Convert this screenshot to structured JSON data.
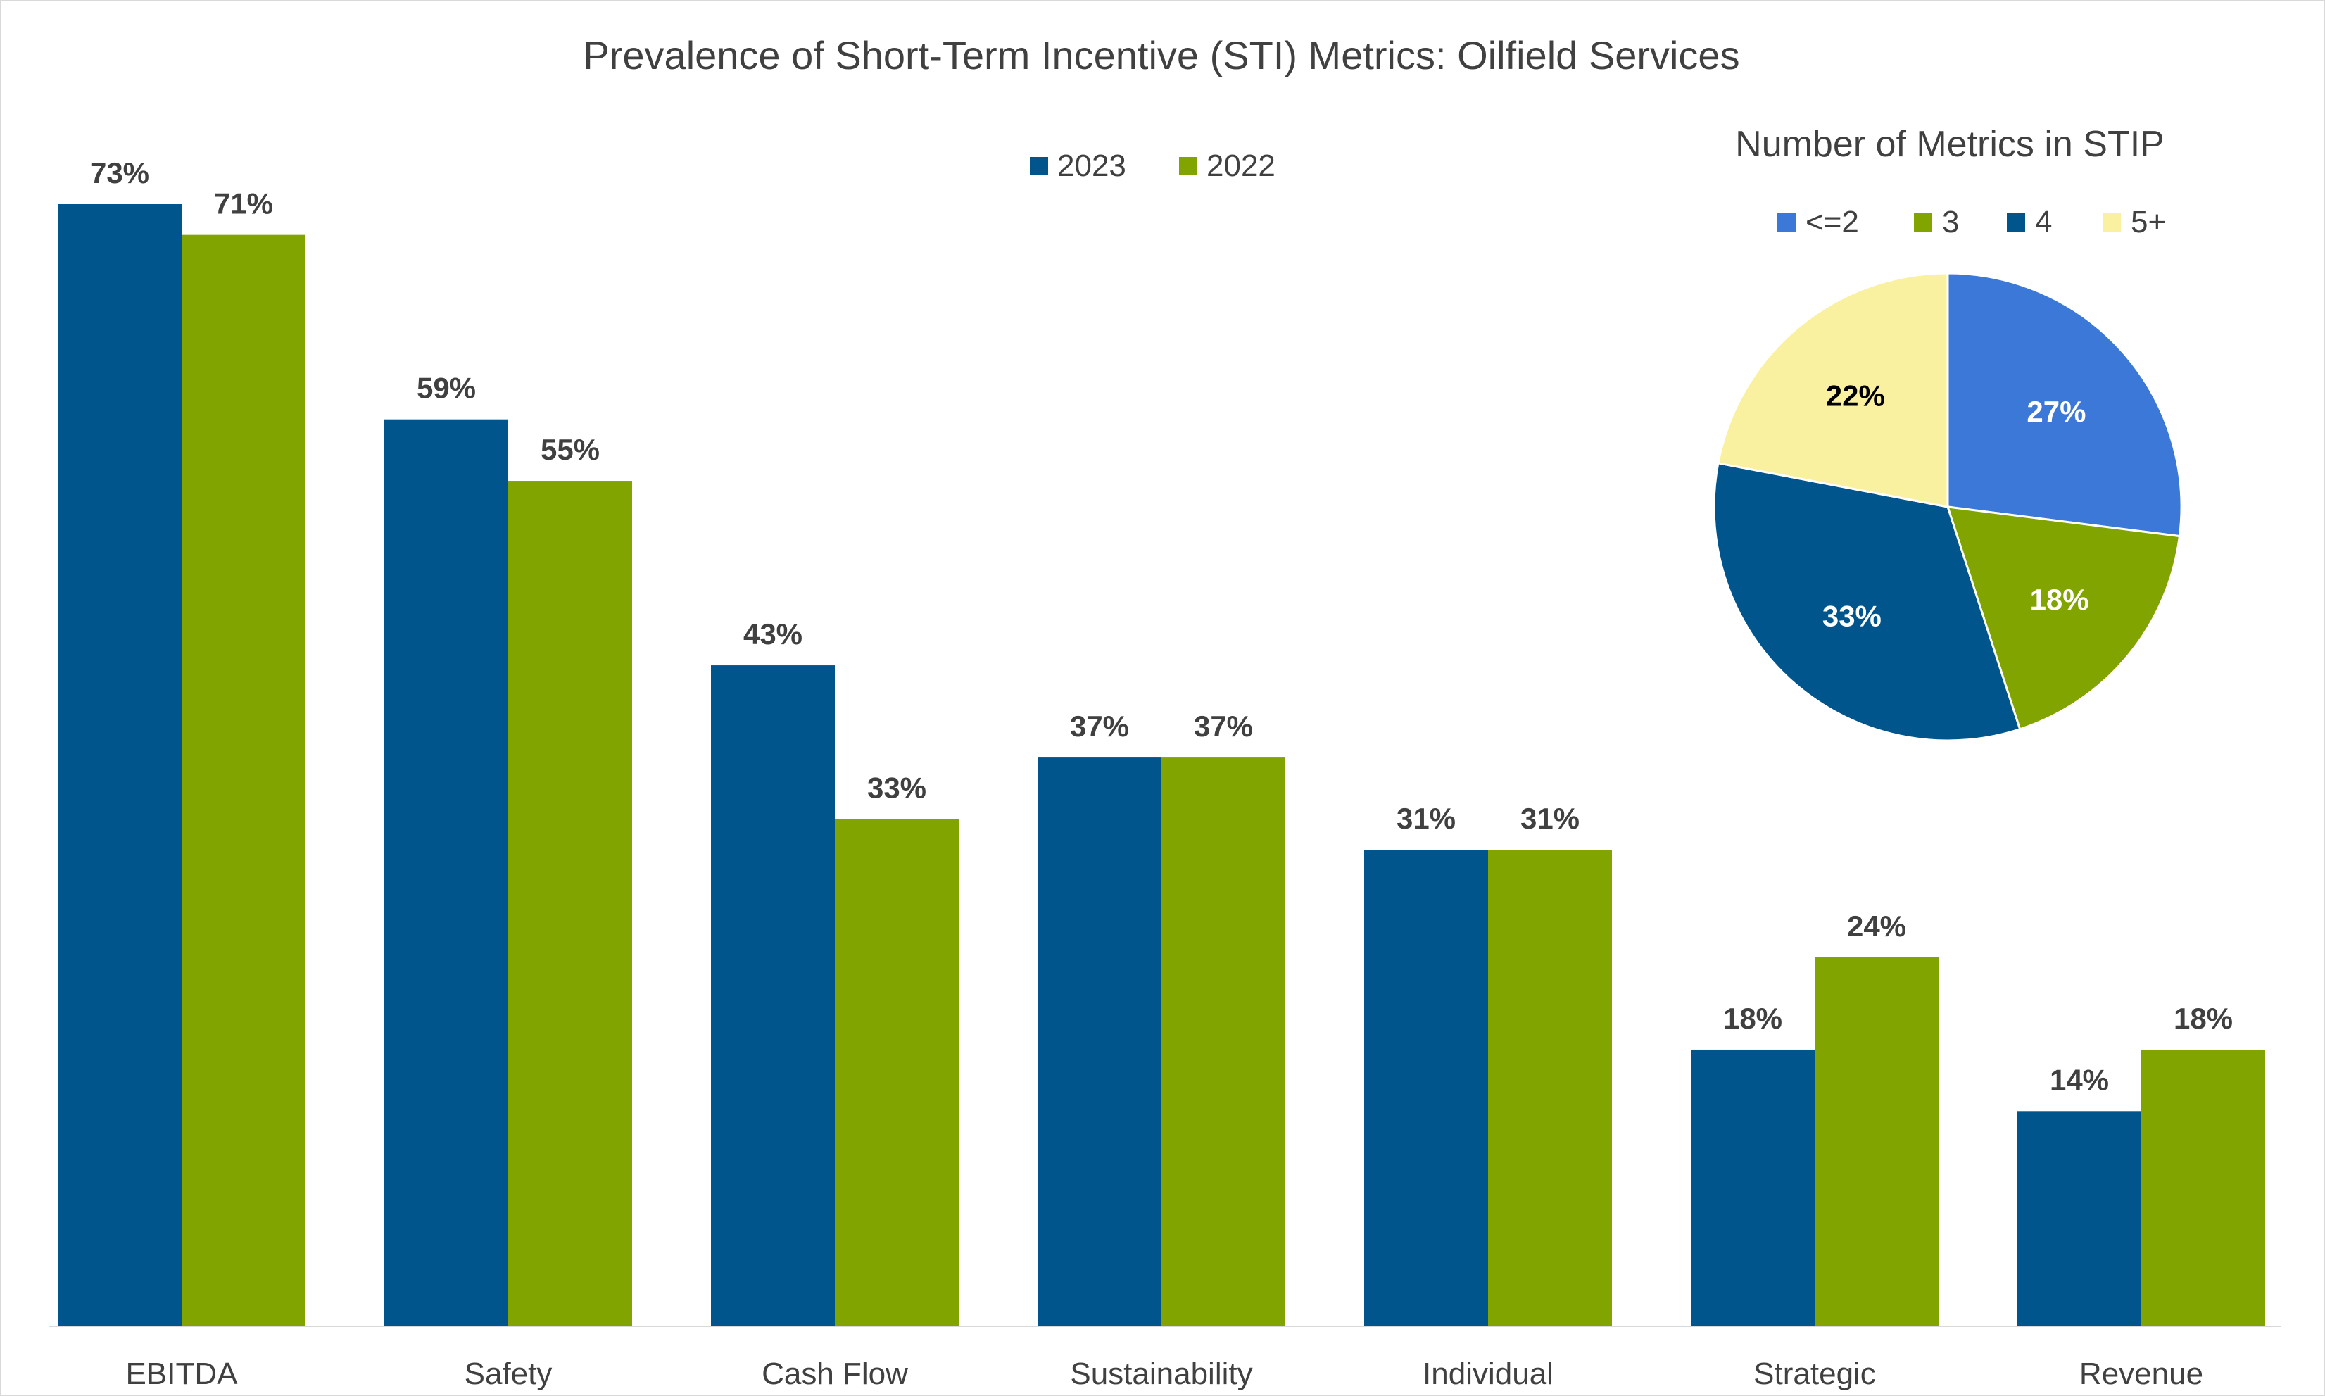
{
  "chart_data": [
    {
      "type": "bar",
      "title": "Prevalence of Short-Term Incentive (STI) Metrics: Oilfield Services",
      "xlabel": "",
      "ylabel": "",
      "ylim": [
        0,
        75
      ],
      "grid": false,
      "legend_position": "top-center",
      "categories": [
        "EBITDA",
        "Safety",
        "Cash Flow",
        "Sustainability",
        "Individual",
        "Strategic",
        "Revenue"
      ],
      "series": [
        {
          "name": "2023",
          "color": "#00558C",
          "values": [
            73,
            59,
            43,
            37,
            31,
            18,
            14
          ],
          "labels": [
            "73%",
            "59%",
            "43%",
            "37%",
            "31%",
            "18%",
            "14%"
          ]
        },
        {
          "name": "2022",
          "color": "#82A400",
          "values": [
            71,
            55,
            33,
            37,
            31,
            24,
            18
          ],
          "labels": [
            "71%",
            "55%",
            "33%",
            "37%",
            "31%",
            "24%",
            "18%"
          ]
        }
      ]
    },
    {
      "type": "pie",
      "title": "Number of Metrics in STIP",
      "legend_position": "top",
      "slices": [
        {
          "label": "<=2",
          "value": 27,
          "value_label": "27%",
          "color": "#3C78D8",
          "text_color": "#ffffff"
        },
        {
          "label": "3",
          "value": 18,
          "value_label": "18%",
          "color": "#82A400",
          "text_color": "#ffffff"
        },
        {
          "label": "4",
          "value": 33,
          "value_label": "33%",
          "color": "#00558C",
          "text_color": "#ffffff"
        },
        {
          "label": "5+",
          "value": 22,
          "value_label": "22%",
          "color": "#F9F0A0",
          "text_color": "#000000"
        }
      ]
    }
  ]
}
